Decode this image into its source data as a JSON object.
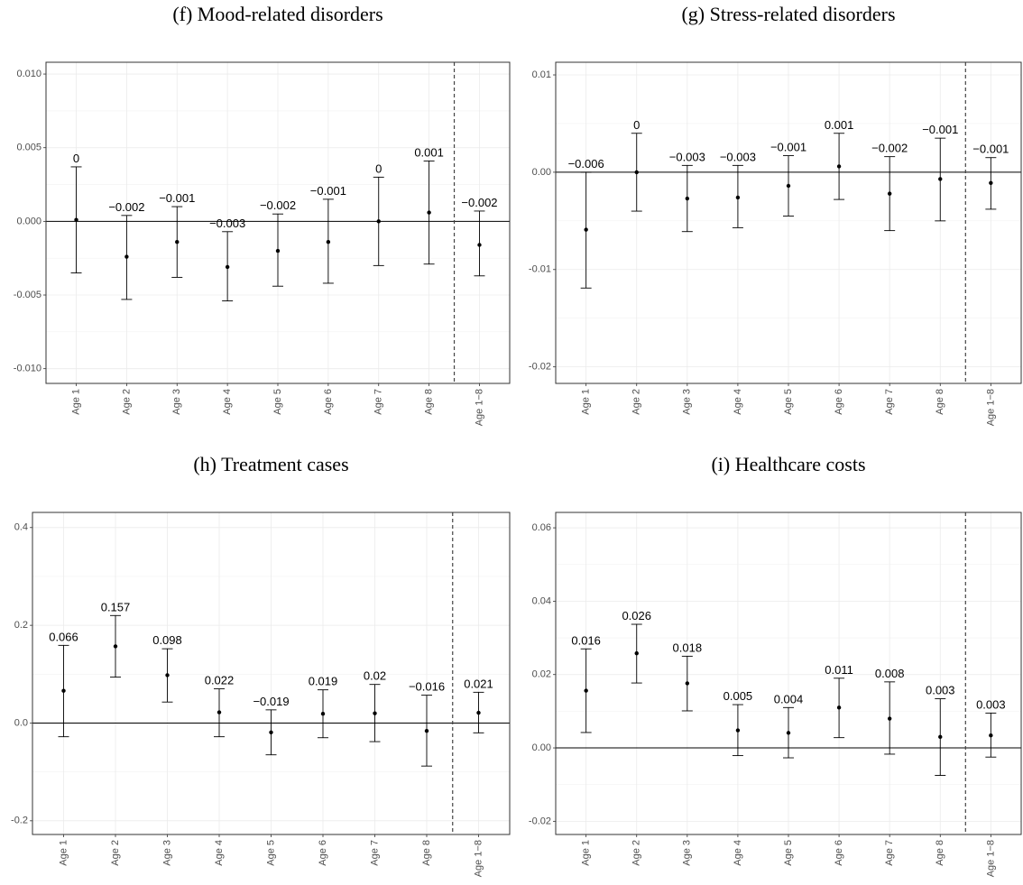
{
  "chart_data": [
    {
      "type": "errorbar",
      "title": "(f) Mood-related disorders",
      "categories": [
        "Age 1",
        "Age 2",
        "Age 3",
        "Age 4",
        "Age 5",
        "Age 6",
        "Age 7",
        "Age 8",
        "Age 1−8"
      ],
      "values": [
        0.0001,
        -0.0024,
        -0.0014,
        -0.0031,
        -0.002,
        -0.0014,
        0.0,
        0.0006,
        -0.0016
      ],
      "value_labels": [
        "0",
        "−0.002",
        "−0.001",
        "−0.003",
        "−0.002",
        "−0.001",
        "0",
        "0.001",
        "−0.002"
      ],
      "lower": [
        -0.0035,
        -0.0053,
        -0.0038,
        -0.0054,
        -0.0044,
        -0.0042,
        -0.003,
        -0.0029,
        -0.0037
      ],
      "upper": [
        0.0037,
        0.0004,
        0.001,
        -0.0007,
        0.0005,
        0.0015,
        0.003,
        0.0041,
        0.0007
      ],
      "ylim": [
        -0.011,
        0.0108
      ],
      "yticks": [
        {
          "value": -0.01,
          "label": "-0.010"
        },
        -0.005,
        {
          "value": 0,
          "label": "0.000"
        },
        0.005,
        {
          "value": 0.01,
          "label": "0.010"
        }
      ],
      "hline": 0,
      "grid": true,
      "color": "#000000"
    },
    {
      "type": "errorbar",
      "title": "(g) Stress-related disorders",
      "categories": [
        "Age 1",
        "Age 2",
        "Age 3",
        "Age 4",
        "Age 5",
        "Age 6",
        "Age 7",
        "Age 8",
        "Age 1−8"
      ],
      "values": [
        -0.0059,
        0.0,
        -0.0027,
        -0.0026,
        -0.0014,
        0.0006,
        -0.0022,
        -0.0007,
        -0.0011
      ],
      "value_labels": [
        "−0.006",
        "0",
        "−0.003",
        "−0.003",
        "−0.001",
        "0.001",
        "−0.002",
        "−0.001",
        "−0.001"
      ],
      "lower": [
        -0.0119,
        -0.004,
        -0.0061,
        -0.0057,
        -0.0045,
        -0.0028,
        -0.006,
        -0.005,
        -0.0038
      ],
      "upper": [
        0.0,
        0.004,
        0.0007,
        0.0007,
        0.0017,
        0.004,
        0.0016,
        0.0035,
        0.0015
      ],
      "ylim": [
        -0.0217,
        0.0113
      ],
      "yticks": [
        -0.02,
        -0.01,
        {
          "value": 0,
          "label": "0.00"
        },
        0.01
      ],
      "hline": 0,
      "grid": true,
      "color": "#000000"
    },
    {
      "type": "errorbar",
      "title": "(h) Treatment cases",
      "categories": [
        "Age 1",
        "Age 2",
        "Age 3",
        "Age 4",
        "Age 5",
        "Age 6",
        "Age 7",
        "Age 8",
        "Age 1−8"
      ],
      "values": [
        0.066,
        0.157,
        0.098,
        0.022,
        -0.019,
        0.019,
        0.02,
        -0.016,
        0.021
      ],
      "value_labels": [
        "0.066",
        "0.157",
        "0.098",
        "0.022",
        "−0.019",
        "0.019",
        "0.02",
        "−0.016",
        "0.021"
      ],
      "lower": [
        -0.028,
        0.094,
        0.043,
        -0.028,
        -0.065,
        -0.03,
        -0.038,
        -0.088,
        -0.02
      ],
      "upper": [
        0.159,
        0.22,
        0.152,
        0.07,
        0.027,
        0.068,
        0.079,
        0.057,
        0.063
      ],
      "ylim": [
        -0.228,
        0.431
      ],
      "yticks": [
        -0.2,
        {
          "value": 0,
          "label": "0.0"
        },
        0.2,
        0.4
      ],
      "hline": 0,
      "grid": true,
      "color": "#000000"
    },
    {
      "type": "errorbar",
      "title": "(i) Healthcare costs",
      "categories": [
        "Age 1",
        "Age 2",
        "Age 3",
        "Age 4",
        "Age 5",
        "Age 6",
        "Age 7",
        "Age 8",
        "Age 1−8"
      ],
      "values": [
        0.0156,
        0.0258,
        0.0176,
        0.0048,
        0.0041,
        0.011,
        0.008,
        0.003,
        0.0034
      ],
      "value_labels": [
        "0.016",
        "0.026",
        "0.018",
        "0.005",
        "0.004",
        "0.011",
        "0.008",
        "0.003",
        "0.003"
      ],
      "lower": [
        0.0042,
        0.0177,
        0.0101,
        -0.0021,
        -0.0027,
        0.0028,
        -0.0017,
        -0.0075,
        -0.0025
      ],
      "upper": [
        0.027,
        0.0337,
        0.025,
        0.0118,
        0.011,
        0.019,
        0.018,
        0.0134,
        0.0095
      ],
      "ylim": [
        -0.0236,
        0.0642
      ],
      "yticks": [
        -0.02,
        {
          "value": 0,
          "label": "0.00"
        },
        0.02,
        0.04,
        0.06
      ],
      "hline": 0,
      "grid": true,
      "color": "#000000"
    }
  ]
}
